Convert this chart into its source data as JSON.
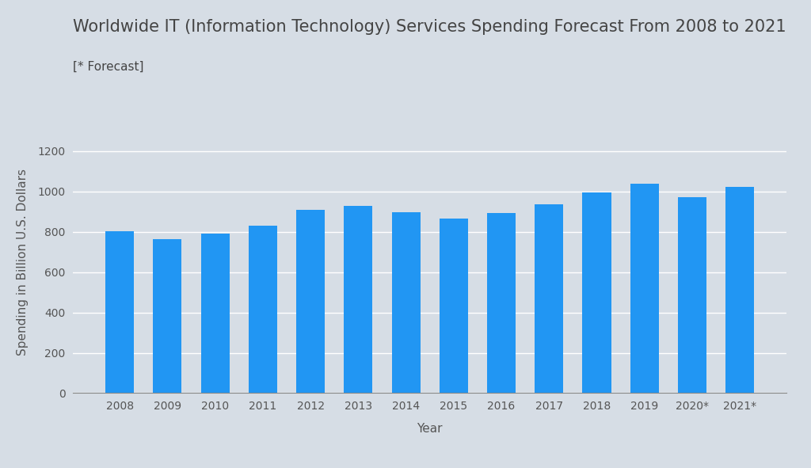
{
  "title": "Worldwide IT (Information Technology) Services Spending Forecast From 2008 to 2021",
  "subtitle": "[* Forecast]",
  "xlabel": "Year",
  "ylabel": "Spending in Billion U.S. Dollars",
  "categories": [
    "2008",
    "2009",
    "2010",
    "2011",
    "2012",
    "2013",
    "2014",
    "2015",
    "2016",
    "2017",
    "2018",
    "2019",
    "2020*",
    "2021*"
  ],
  "values": [
    803,
    763,
    790,
    829,
    911,
    928,
    899,
    864,
    893,
    935,
    997,
    1040,
    970,
    1023
  ],
  "bar_color": "#2196F3",
  "background_color": "#d6dde5",
  "plot_background_color": "#d6dde5",
  "title_fontsize": 15,
  "subtitle_fontsize": 11,
  "label_fontsize": 11,
  "tick_fontsize": 10,
  "ylim": [
    0,
    1300
  ],
  "yticks": [
    0,
    200,
    400,
    600,
    800,
    1000,
    1200
  ],
  "grid_color": "#ffffff",
  "title_color": "#444444",
  "label_color": "#555555",
  "tick_color": "#555555"
}
